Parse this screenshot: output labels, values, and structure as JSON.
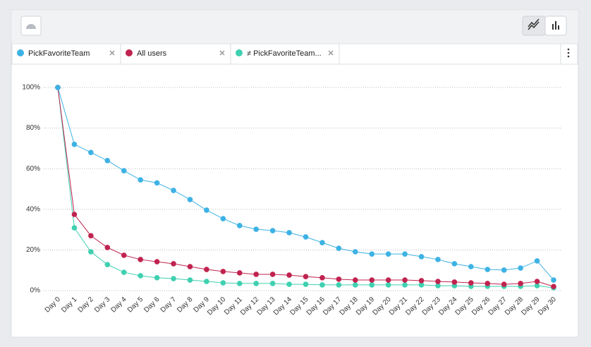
{
  "chart_data": {
    "type": "line",
    "categories": [
      "Day 0",
      "Day 1",
      "Day 2",
      "Day 3",
      "Day 4",
      "Day 5",
      "Day 6",
      "Day 7",
      "Day 8",
      "Day 9",
      "Day 10",
      "Day 11",
      "Day 12",
      "Day 13",
      "Day 14",
      "Day 15",
      "Day 16",
      "Day 17",
      "Day 18",
      "Day 19",
      "Day 20",
      "Day 21",
      "Day 22",
      "Day 23",
      "Day 24",
      "Day 25",
      "Day 26",
      "Day 27",
      "Day 28",
      "Day 29",
      "Day 30"
    ],
    "series": [
      {
        "name": "PickFavoriteTeam",
        "color": "#3db2e4",
        "values": [
          100,
          72,
          68,
          64,
          59,
          54.5,
          53,
          49.3,
          44.8,
          39.6,
          35.4,
          32,
          30.2,
          29.5,
          28.5,
          26.4,
          23.6,
          20.8,
          19.1,
          18,
          18,
          18,
          16.7,
          15.3,
          13.2,
          11.8,
          10.4,
          10.1,
          11.1,
          14.6,
          5.2
        ]
      },
      {
        "name": "All users",
        "color": "#c0234f",
        "values": [
          100,
          37.5,
          27,
          21.2,
          17.4,
          15.3,
          14.2,
          13.2,
          11.8,
          10.4,
          9.4,
          8.7,
          8,
          8,
          7.6,
          6.9,
          6.3,
          5.6,
          5.2,
          5.2,
          5.2,
          5.2,
          4.9,
          4.5,
          4.2,
          3.8,
          3.5,
          3.1,
          3.5,
          4.5,
          2
        ]
      },
      {
        "name": "≠ PickFavoriteTeam...",
        "color": "#3fd0b0",
        "values": [
          100,
          30.9,
          19.1,
          12.8,
          9,
          7.3,
          6.3,
          5.9,
          5.2,
          4.5,
          3.8,
          3.5,
          3.5,
          3.5,
          3.1,
          3.1,
          2.8,
          2.8,
          2.8,
          2.8,
          2.8,
          2.8,
          2.8,
          2.4,
          2.4,
          2.1,
          2.1,
          2.1,
          2.1,
          2.4,
          1.4
        ]
      }
    ],
    "ylim": [
      0,
      100
    ],
    "yticks": [
      {
        "value": 0,
        "label": "0%"
      },
      {
        "value": 20,
        "label": "20%"
      },
      {
        "value": 40,
        "label": "40%"
      },
      {
        "value": 60,
        "label": "60%"
      },
      {
        "value": 80,
        "label": "80%"
      },
      {
        "value": 100,
        "label": "100%"
      }
    ],
    "grid": true
  }
}
